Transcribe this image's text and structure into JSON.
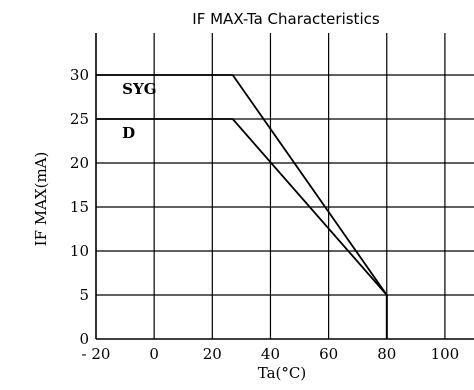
{
  "chart_data": {
    "type": "line",
    "title": "IF MAX-Ta Characteristics",
    "xlabel": "Ta(°C)",
    "ylabel": "IF MAX(mA)",
    "xlim": [
      -20,
      110
    ],
    "ylim": [
      0,
      30
    ],
    "x_ticks": [
      -20,
      0,
      20,
      40,
      60,
      80,
      100
    ],
    "x_tick_labels": [
      "- 20",
      "0",
      "20",
      "40",
      "60",
      "80",
      "100"
    ],
    "y_ticks": [
      0,
      5,
      10,
      15,
      20,
      25,
      30
    ],
    "y_tick_labels": [
      "0",
      "5",
      "10",
      "15",
      "20",
      "25",
      "30"
    ],
    "grid": true,
    "series": [
      {
        "name": "SYG",
        "x": [
          -20,
          27,
          80,
          80
        ],
        "y": [
          30,
          30,
          5,
          0
        ],
        "color": "#000000"
      },
      {
        "name": "D",
        "x": [
          -20,
          27,
          80,
          80
        ],
        "y": [
          25,
          25,
          5,
          0
        ],
        "color": "#000000"
      }
    ]
  }
}
